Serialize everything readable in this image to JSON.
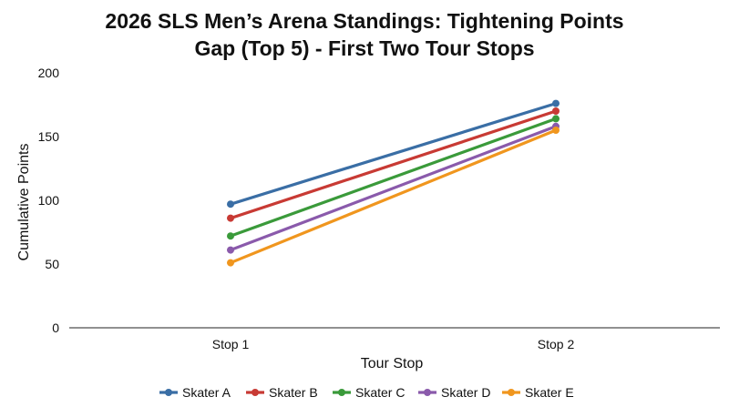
{
  "chart_data": {
    "type": "line",
    "title_lines": [
      "2026 SLS Men’s Arena Standings: Tightening Points",
      "Gap (Top 5) - First Two Tour Stops"
    ],
    "xlabel": "Tour Stop",
    "ylabel": "Cumulative Points",
    "categories": [
      "Stop 1",
      "Stop 2"
    ],
    "ylim": [
      0,
      200
    ],
    "yticks": [
      0,
      50,
      100,
      150,
      200
    ],
    "grid": false,
    "legend_position": "bottom",
    "series": [
      {
        "name": "Skater A",
        "color": "#3a6ea5",
        "values": [
          97,
          176
        ]
      },
      {
        "name": "Skater B",
        "color": "#c83a34",
        "values": [
          86,
          170
        ]
      },
      {
        "name": "Skater C",
        "color": "#3a9a3a",
        "values": [
          72,
          164
        ]
      },
      {
        "name": "Skater D",
        "color": "#8a5aab",
        "values": [
          61,
          158
        ]
      },
      {
        "name": "Skater E",
        "color": "#f0961e",
        "values": [
          51,
          155
        ]
      }
    ]
  }
}
